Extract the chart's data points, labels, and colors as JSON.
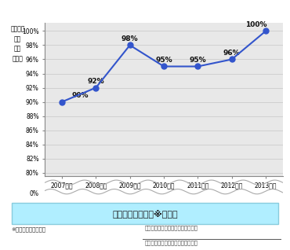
{
  "years": [
    "2007年度",
    "2008年度",
    "2009年度",
    "2010年度",
    "2011年度",
    "2012年度",
    "2013年度"
  ],
  "values": [
    90,
    92,
    98,
    95,
    95,
    96,
    100
  ],
  "labels": [
    "90%",
    "92%",
    "98%",
    "95%",
    "95%",
    "96%",
    "100%"
  ],
  "line_color": "#3355cc",
  "marker_color": "#3355cc",
  "bg_plot_color": "#e8e8e8",
  "bg_fig_color": "#ffffff",
  "grid_color": "#cccccc",
  "yticks": [
    80,
    82,
    84,
    86,
    88,
    90,
    92,
    94,
    96,
    98,
    100
  ],
  "ytick_labels": [
    "80%",
    "82%",
    "84%",
    "86%",
    "88%",
    "90%",
    "92%",
    "94%",
    "96%",
    "98%",
    "100%"
  ],
  "ylabel": "エコ商品\n開発\n比率\n（％）",
  "zero_label": "0%",
  "caption_box_color": "#b0eeff",
  "caption_text": "エコ商品開発比率※の推移",
  "footnote1": "※エコ商品開発比率＝",
  "footnote2": "当該年度のエコ商品開発件数（件）",
  "footnote3": "当該年度の新規開発商品合計（件）"
}
